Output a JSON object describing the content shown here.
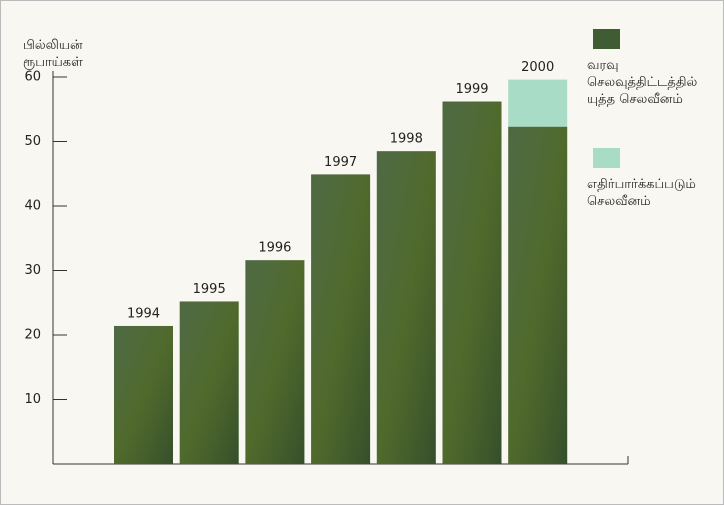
{
  "chart_data": {
    "type": "bar",
    "y_label": "பில்லியன்\nரூபாய்கள்",
    "categories": [
      "1994",
      "1995",
      "1996",
      "1997",
      "1998",
      "1999",
      "2000"
    ],
    "series": [
      {
        "name": "வரவு\nசெலவுத்திட்டத்தில்\nயுத்த செலவீனம்",
        "color": "#3f5c32",
        "values": [
          21.4,
          25.2,
          31.6,
          44.9,
          48.5,
          56.2,
          52.3
        ]
      },
      {
        "name": "எதிர்பார்க்கப்படும்\nசெலவீனம்",
        "color": "#a9dcc6",
        "values": [
          null,
          null,
          null,
          null,
          null,
          null,
          7.3
        ]
      }
    ],
    "stacked": true,
    "ylim": [
      0,
      60
    ],
    "yticks": [
      10,
      20,
      30,
      40,
      50,
      60
    ]
  }
}
